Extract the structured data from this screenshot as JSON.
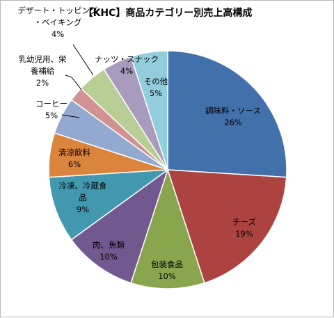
{
  "chart_data": {
    "type": "pie",
    "title": "【KHC】商品カテゴリー別売上高構成",
    "start_angle_deg": 0,
    "direction": "clockwise",
    "legend": "none",
    "slices": [
      {
        "label": "調味料・ソース",
        "value": 26,
        "value_label": "26%",
        "color": "#4170ab"
      },
      {
        "label": "チーズ",
        "value": 19,
        "value_label": "19%",
        "color": "#ad4341"
      },
      {
        "label": "包装食品",
        "value": 10,
        "value_label": "10%",
        "color": "#89a54e"
      },
      {
        "label": "肉、魚類",
        "value": 10,
        "value_label": "10%",
        "color": "#71588f"
      },
      {
        "label": "冷凍、冷蔵食品",
        "value": 9,
        "value_label": "9%",
        "color": "#4198af"
      },
      {
        "label": "清涼飲料",
        "value": 6,
        "value_label": "6%",
        "color": "#db843d"
      },
      {
        "label": "コーヒー",
        "value": 5,
        "value_label": "5%",
        "color": "#93a9cf"
      },
      {
        "label": "乳幼児用、栄養補給",
        "value": 2,
        "value_label": "2%",
        "color": "#d19392"
      },
      {
        "label": "デザート・トッピング・ベイキング",
        "value": 4,
        "value_label": "4%",
        "color": "#b9cd96"
      },
      {
        "label": "ナッツ・スナック",
        "value": 4,
        "value_label": "4%",
        "color": "#a99bbd"
      },
      {
        "label": "その他",
        "value": 5,
        "value_label": "5%",
        "color": "#92cddc"
      }
    ]
  }
}
